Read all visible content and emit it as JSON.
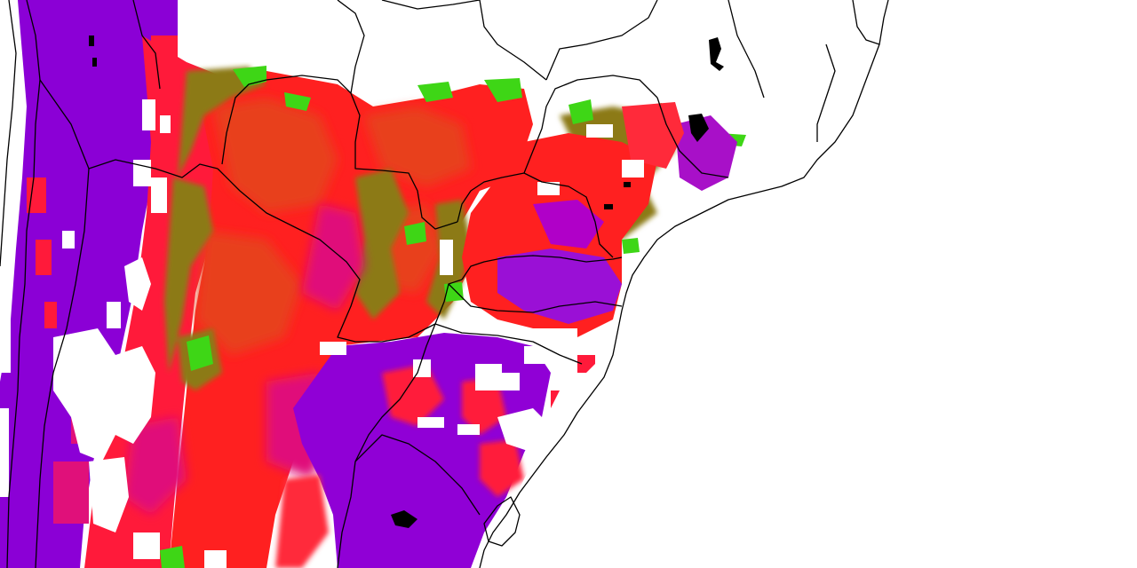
{
  "map": {
    "background_color": "#ffffff",
    "boundary_color": "#000000",
    "shading_colors": {
      "violet": "#8b00d6",
      "magenta": "#e0107a",
      "red": "#ff1a1a",
      "red_orange": "#e8381a",
      "olive": "#8c7a14",
      "green": "#3ed616"
    },
    "icons": [
      "compass-free-map",
      "no-legend"
    ]
  }
}
